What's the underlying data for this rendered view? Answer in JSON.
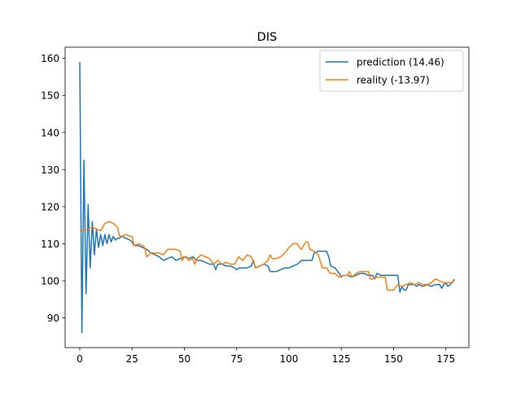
{
  "chart_data": {
    "type": "line",
    "title": "DIS",
    "xlabel": "",
    "ylabel": "",
    "xlim": [
      -7,
      186
    ],
    "ylim": [
      82,
      163
    ],
    "x_ticks": [
      0,
      25,
      50,
      75,
      100,
      125,
      150,
      175
    ],
    "y_ticks": [
      90,
      100,
      110,
      120,
      130,
      140,
      150,
      160
    ],
    "legend_position": "top-right",
    "grid": false,
    "series": [
      {
        "name": "prediction (14.46)",
        "color": "#1f77b4",
        "points": [
          [
            0,
            159
          ],
          [
            1,
            86
          ],
          [
            2,
            132.5
          ],
          [
            3,
            96.5
          ],
          [
            4,
            120.5
          ],
          [
            5,
            103.5
          ],
          [
            6,
            116
          ],
          [
            7,
            107
          ],
          [
            8,
            114
          ],
          [
            9,
            109
          ],
          [
            10,
            112.5
          ],
          [
            11,
            109.5
          ],
          [
            12,
            112.5
          ],
          [
            13,
            110
          ],
          [
            14,
            112.5
          ],
          [
            15,
            110.5
          ],
          [
            16,
            112
          ],
          [
            17,
            111
          ],
          [
            18,
            111.5
          ],
          [
            19,
            111.5
          ],
          [
            20,
            112
          ],
          [
            22,
            111.5
          ],
          [
            24,
            111
          ],
          [
            25,
            110.5
          ],
          [
            26,
            109.5
          ],
          [
            28,
            109.5
          ],
          [
            30,
            109
          ],
          [
            32,
            108.5
          ],
          [
            34,
            107.5
          ],
          [
            36,
            107
          ],
          [
            38,
            106.5
          ],
          [
            40,
            105.5
          ],
          [
            42,
            106
          ],
          [
            44,
            106.5
          ],
          [
            46,
            105.5
          ],
          [
            48,
            106
          ],
          [
            50,
            106.5
          ],
          [
            52,
            106
          ],
          [
            54,
            106.5
          ],
          [
            56,
            105.5
          ],
          [
            58,
            105.5
          ],
          [
            60,
            105
          ],
          [
            62,
            104.5
          ],
          [
            64,
            104.5
          ],
          [
            65,
            103
          ],
          [
            66,
            104.5
          ],
          [
            68,
            104.5
          ],
          [
            70,
            104
          ],
          [
            72,
            104
          ],
          [
            74,
            103.5
          ],
          [
            75,
            103
          ],
          [
            76,
            103.5
          ],
          [
            78,
            103.5
          ],
          [
            80,
            103.5
          ],
          [
            82,
            104
          ],
          [
            83,
            105.5
          ],
          [
            84,
            103.5
          ],
          [
            86,
            104
          ],
          [
            88,
            104.5
          ],
          [
            90,
            104
          ],
          [
            91,
            102.5
          ],
          [
            92,
            102.5
          ],
          [
            94,
            102.5
          ],
          [
            96,
            103
          ],
          [
            98,
            103.5
          ],
          [
            100,
            103.5
          ],
          [
            102,
            104
          ],
          [
            104,
            104.5
          ],
          [
            106,
            105.5
          ],
          [
            108,
            105.5
          ],
          [
            110,
            105.5
          ],
          [
            111,
            105.5
          ],
          [
            112,
            107.5
          ],
          [
            114,
            108
          ],
          [
            116,
            108
          ],
          [
            118,
            108
          ],
          [
            119,
            106.5
          ],
          [
            120,
            104
          ],
          [
            122,
            103.5
          ],
          [
            124,
            102
          ],
          [
            125,
            101
          ],
          [
            126,
            101.5
          ],
          [
            128,
            101.5
          ],
          [
            130,
            101
          ],
          [
            132,
            101.5
          ],
          [
            134,
            102
          ],
          [
            136,
            102
          ],
          [
            138,
            101.5
          ],
          [
            140,
            101.5
          ],
          [
            141,
            100.5
          ],
          [
            142,
            102
          ],
          [
            144,
            101.5
          ],
          [
            146,
            101.5
          ],
          [
            148,
            101.5
          ],
          [
            150,
            101.5
          ],
          [
            152,
            101.5
          ],
          [
            153,
            97
          ],
          [
            154,
            98.5
          ],
          [
            155,
            97.5
          ],
          [
            156,
            97.5
          ],
          [
            157,
            99
          ],
          [
            158,
            99
          ],
          [
            160,
            99
          ],
          [
            161,
            98.5
          ],
          [
            162,
            99
          ],
          [
            164,
            98.5
          ],
          [
            165,
            99
          ],
          [
            166,
            99
          ],
          [
            168,
            98.5
          ],
          [
            170,
            99
          ],
          [
            172,
            99
          ],
          [
            173,
            98
          ],
          [
            174,
            99
          ],
          [
            175,
            99.5
          ],
          [
            176,
            98.5
          ],
          [
            177,
            99
          ],
          [
            178,
            99.5
          ],
          [
            179,
            100.5
          ]
        ]
      },
      {
        "name": "reality (-13.97)",
        "color": "#ff7f0e",
        "points": [
          [
            0,
            113.5
          ],
          [
            2,
            113.5
          ],
          [
            4,
            114
          ],
          [
            6,
            114.5
          ],
          [
            8,
            114
          ],
          [
            10,
            113.5
          ],
          [
            12,
            115.5
          ],
          [
            14,
            116
          ],
          [
            16,
            115.5
          ],
          [
            18,
            114.5
          ],
          [
            19,
            112
          ],
          [
            20,
            112
          ],
          [
            22,
            112.5
          ],
          [
            24,
            112
          ],
          [
            25,
            112
          ],
          [
            26,
            109.5
          ],
          [
            28,
            110
          ],
          [
            30,
            109.5
          ],
          [
            31,
            109
          ],
          [
            32,
            106.5
          ],
          [
            34,
            107.5
          ],
          [
            36,
            107.5
          ],
          [
            38,
            107.5
          ],
          [
            40,
            107
          ],
          [
            42,
            108.5
          ],
          [
            44,
            108.5
          ],
          [
            46,
            108.5
          ],
          [
            48,
            108
          ],
          [
            49,
            105.5
          ],
          [
            50,
            106.5
          ],
          [
            51,
            106.5
          ],
          [
            52,
            105.5
          ],
          [
            54,
            106
          ],
          [
            55,
            104.5
          ],
          [
            56,
            106
          ],
          [
            58,
            107
          ],
          [
            60,
            106.5
          ],
          [
            62,
            106
          ],
          [
            64,
            104.5
          ],
          [
            66,
            105.5
          ],
          [
            68,
            104.5
          ],
          [
            70,
            105
          ],
          [
            72,
            104.5
          ],
          [
            74,
            104.5
          ],
          [
            76,
            106.5
          ],
          [
            78,
            105.5
          ],
          [
            80,
            107
          ],
          [
            82,
            106.5
          ],
          [
            84,
            103.5
          ],
          [
            86,
            104
          ],
          [
            88,
            104.5
          ],
          [
            90,
            105.5
          ],
          [
            91,
            107
          ],
          [
            92,
            106
          ],
          [
            94,
            106
          ],
          [
            96,
            106.5
          ],
          [
            98,
            107.5
          ],
          [
            100,
            109
          ],
          [
            102,
            110
          ],
          [
            104,
            110
          ],
          [
            105,
            109
          ],
          [
            106,
            108.5
          ],
          [
            108,
            110.5
          ],
          [
            109,
            110.5
          ],
          [
            110,
            108.5
          ],
          [
            112,
            108
          ],
          [
            114,
            107
          ],
          [
            116,
            103.5
          ],
          [
            118,
            103.5
          ],
          [
            119,
            102.5
          ],
          [
            120,
            102
          ],
          [
            122,
            102
          ],
          [
            124,
            101
          ],
          [
            126,
            101.5
          ],
          [
            128,
            101.5
          ],
          [
            129,
            102.5
          ],
          [
            130,
            101
          ],
          [
            132,
            102
          ],
          [
            134,
            102.5
          ],
          [
            136,
            102.5
          ],
          [
            138,
            102.5
          ],
          [
            139,
            100.5
          ],
          [
            140,
            100.5
          ],
          [
            142,
            101
          ],
          [
            144,
            101
          ],
          [
            146,
            101
          ],
          [
            147,
            97.5
          ],
          [
            148,
            97.5
          ],
          [
            150,
            97.5
          ],
          [
            152,
            99
          ],
          [
            154,
            98.5
          ],
          [
            156,
            99
          ],
          [
            158,
            99.5
          ],
          [
            160,
            99
          ],
          [
            162,
            99.5
          ],
          [
            164,
            99
          ],
          [
            165,
            98.5
          ],
          [
            166,
            99
          ],
          [
            168,
            99.5
          ],
          [
            170,
            100.5
          ],
          [
            172,
            100
          ],
          [
            174,
            99.5
          ],
          [
            176,
            99.5
          ],
          [
            178,
            99.5
          ],
          [
            179,
            100
          ]
        ]
      }
    ]
  }
}
